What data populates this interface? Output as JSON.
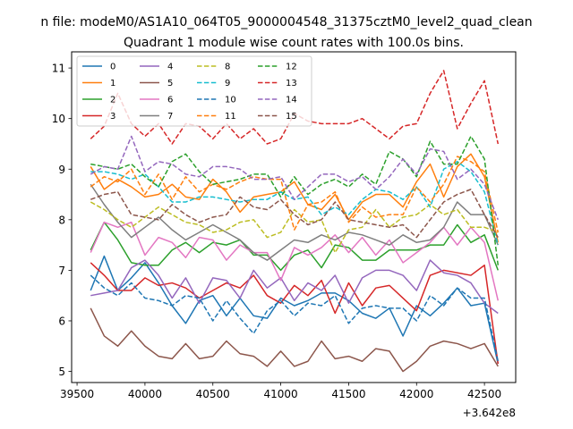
{
  "chart_data": {
    "type": "line",
    "suptitle": "n file: modeM0/AS1A10_064T05_9000004548_31375cztM0_level2_quad_clean",
    "title": "Quadrant 1 module wise count rates with 100.0s bins.",
    "xlabel": "",
    "ylabel": "",
    "x_offset_label": "+3.642e8",
    "xlim": [
      39460,
      42730
    ],
    "ylim": [
      4.78,
      11.32
    ],
    "xticks": [
      39500,
      40000,
      40500,
      41000,
      41500,
      42000,
      42500
    ],
    "yticks": [
      5,
      6,
      7,
      8,
      9,
      10,
      11
    ],
    "legend_position": "upper-left",
    "x": [
      39600,
      39700,
      39800,
      39900,
      40000,
      40100,
      40200,
      40300,
      40400,
      40500,
      40600,
      40700,
      40800,
      40900,
      41000,
      41100,
      41200,
      41300,
      41400,
      41500,
      41600,
      41700,
      41800,
      41900,
      42000,
      42100,
      42200,
      42300,
      42400,
      42500,
      42600
    ],
    "series": [
      {
        "name": "0",
        "color": "#1f77b4",
        "dash": "solid",
        "values": [
          6.6,
          7.28,
          6.6,
          6.85,
          7.15,
          6.75,
          6.3,
          5.95,
          6.4,
          6.5,
          6.1,
          6.45,
          6.1,
          6.05,
          6.45,
          6.3,
          6.4,
          6.55,
          6.55,
          6.4,
          6.15,
          6.05,
          6.25,
          5.7,
          6.3,
          6.1,
          6.35,
          6.65,
          6.3,
          6.35,
          5.15
        ]
      },
      {
        "name": "1",
        "color": "#ff7f0e",
        "dash": "solid",
        "values": [
          9.05,
          8.6,
          8.8,
          8.65,
          8.45,
          8.5,
          8.7,
          8.45,
          8.4,
          8.8,
          8.55,
          8.15,
          8.45,
          8.5,
          8.55,
          8.75,
          8.3,
          8.2,
          8.5,
          8.0,
          8.35,
          8.5,
          8.5,
          8.25,
          8.75,
          9.1,
          8.45,
          9.05,
          9.3,
          8.85,
          7.55
        ]
      },
      {
        "name": "2",
        "color": "#2ca02c",
        "dash": "solid",
        "values": [
          7.4,
          7.95,
          7.6,
          7.15,
          7.1,
          7.1,
          7.4,
          7.55,
          7.35,
          7.55,
          7.5,
          7.6,
          7.3,
          7.3,
          7.0,
          7.3,
          7.4,
          7.05,
          7.5,
          7.45,
          7.2,
          7.2,
          7.4,
          7.4,
          7.4,
          7.5,
          7.5,
          7.9,
          7.55,
          7.7,
          7.0
        ]
      },
      {
        "name": "3",
        "color": "#d62728",
        "dash": "solid",
        "values": [
          7.15,
          6.9,
          6.6,
          6.6,
          6.85,
          6.7,
          6.75,
          6.65,
          6.45,
          6.6,
          6.75,
          6.65,
          6.9,
          6.5,
          6.35,
          6.7,
          6.5,
          6.8,
          6.15,
          6.75,
          6.3,
          6.65,
          6.7,
          6.45,
          6.2,
          6.9,
          7.0,
          6.95,
          6.9,
          7.1,
          5.15
        ]
      },
      {
        "name": "4",
        "color": "#9467bd",
        "dash": "solid",
        "values": [
          6.5,
          6.55,
          6.6,
          7.05,
          7.2,
          6.9,
          6.45,
          6.85,
          6.35,
          6.85,
          6.8,
          6.45,
          7.0,
          6.65,
          6.85,
          6.4,
          6.75,
          6.6,
          6.9,
          6.35,
          6.85,
          7.0,
          7.0,
          6.9,
          6.6,
          7.2,
          6.95,
          6.9,
          6.75,
          6.35,
          6.15
        ]
      },
      {
        "name": "5",
        "color": "#8c564b",
        "dash": "solid",
        "values": [
          6.25,
          5.7,
          5.5,
          5.8,
          5.5,
          5.3,
          5.25,
          5.55,
          5.25,
          5.3,
          5.6,
          5.35,
          5.3,
          5.1,
          5.4,
          5.1,
          5.2,
          5.6,
          5.25,
          5.3,
          5.2,
          5.45,
          5.4,
          5.0,
          5.2,
          5.5,
          5.6,
          5.55,
          5.45,
          5.55,
          5.1
        ]
      },
      {
        "name": "6",
        "color": "#e377c2",
        "dash": "solid",
        "values": [
          7.35,
          7.95,
          7.85,
          7.95,
          7.3,
          7.65,
          7.55,
          7.25,
          7.65,
          7.6,
          7.2,
          7.5,
          7.35,
          7.35,
          6.8,
          7.45,
          7.3,
          7.45,
          7.7,
          7.35,
          7.65,
          7.3,
          7.6,
          7.15,
          7.35,
          7.55,
          7.85,
          7.5,
          7.85,
          7.55,
          6.4
        ]
      },
      {
        "name": "7",
        "color": "#7f7f7f",
        "dash": "solid",
        "values": [
          8.7,
          8.3,
          7.95,
          7.65,
          7.85,
          8.05,
          7.8,
          7.6,
          7.75,
          7.9,
          7.75,
          7.6,
          7.35,
          7.2,
          7.4,
          7.6,
          7.55,
          7.7,
          7.6,
          7.75,
          7.7,
          7.6,
          7.5,
          7.7,
          7.55,
          7.6,
          7.85,
          8.35,
          8.1,
          8.1,
          7.5
        ]
      },
      {
        "name": "8",
        "color": "#bcbd22",
        "dash": "dashed",
        "values": [
          8.35,
          8.2,
          8.0,
          7.85,
          8.05,
          8.25,
          8.1,
          7.95,
          7.9,
          7.75,
          7.8,
          7.95,
          8.0,
          7.65,
          7.75,
          8.2,
          7.95,
          8.0,
          7.35,
          7.8,
          7.85,
          8.2,
          7.85,
          8.05,
          8.1,
          8.3,
          8.1,
          8.2,
          7.85,
          7.85,
          7.75
        ]
      },
      {
        "name": "9",
        "color": "#17becf",
        "dash": "dashed",
        "values": [
          8.95,
          8.95,
          8.9,
          8.8,
          8.9,
          8.65,
          8.35,
          8.35,
          8.45,
          8.45,
          8.4,
          8.35,
          8.4,
          8.4,
          8.55,
          8.4,
          8.45,
          8.1,
          8.25,
          8.1,
          8.4,
          8.6,
          8.55,
          8.4,
          8.65,
          8.25,
          9.0,
          9.15,
          8.95,
          8.55,
          7.5
        ]
      },
      {
        "name": "10",
        "color": "#1f77b4",
        "dash": "dashed",
        "values": [
          6.9,
          6.65,
          6.5,
          6.75,
          6.45,
          6.4,
          6.3,
          6.5,
          6.45,
          6.0,
          6.4,
          6.05,
          5.75,
          6.2,
          6.4,
          6.1,
          6.35,
          6.3,
          6.5,
          5.95,
          6.25,
          6.3,
          6.25,
          6.25,
          6.0,
          6.5,
          6.3,
          6.65,
          6.45,
          6.45,
          5.2
        ]
      },
      {
        "name": "11",
        "color": "#ff7f0e",
        "dash": "dashed",
        "values": [
          8.65,
          8.85,
          8.75,
          9.0,
          8.5,
          8.9,
          8.4,
          8.85,
          8.55,
          8.7,
          8.6,
          8.75,
          8.85,
          8.8,
          8.8,
          7.8,
          8.3,
          8.35,
          8.55,
          7.95,
          8.25,
          8.05,
          8.1,
          8.1,
          8.65,
          8.35,
          8.7,
          9.25,
          9.15,
          8.95,
          7.75
        ]
      },
      {
        "name": "12",
        "color": "#2ca02c",
        "dash": "dashed",
        "values": [
          9.1,
          9.05,
          9.0,
          9.1,
          8.85,
          8.65,
          9.15,
          9.3,
          8.95,
          8.7,
          8.75,
          8.8,
          8.9,
          8.9,
          8.45,
          8.85,
          8.5,
          8.7,
          8.8,
          8.65,
          8.9,
          8.7,
          9.35,
          9.2,
          8.85,
          9.55,
          9.1,
          9.1,
          9.65,
          9.2,
          7.1
        ]
      },
      {
        "name": "13",
        "color": "#d62728",
        "dash": "dashed",
        "values": [
          9.6,
          9.85,
          10.5,
          9.9,
          9.65,
          9.9,
          9.5,
          9.9,
          9.85,
          9.6,
          9.9,
          9.6,
          9.8,
          9.5,
          9.6,
          10.1,
          9.95,
          9.9,
          9.9,
          9.9,
          10.0,
          9.8,
          9.6,
          9.85,
          9.9,
          10.5,
          10.95,
          9.8,
          10.3,
          10.75,
          9.5
        ]
      },
      {
        "name": "14",
        "color": "#9467bd",
        "dash": "dashed",
        "values": [
          8.9,
          9.05,
          9.0,
          9.65,
          8.95,
          9.15,
          9.1,
          8.9,
          8.85,
          9.05,
          9.05,
          9.0,
          8.8,
          8.8,
          8.85,
          8.4,
          8.65,
          8.9,
          8.9,
          8.75,
          8.85,
          8.6,
          8.85,
          9.2,
          8.9,
          9.4,
          9.35,
          8.8,
          9.0,
          8.7,
          8.0
        ]
      },
      {
        "name": "15",
        "color": "#8c564b",
        "dash": "dashed",
        "values": [
          8.4,
          8.5,
          8.55,
          8.1,
          8.05,
          8.0,
          8.3,
          8.1,
          7.95,
          8.05,
          8.1,
          8.45,
          8.25,
          8.2,
          8.4,
          8.1,
          7.9,
          8.0,
          8.35,
          8.0,
          7.95,
          7.9,
          7.85,
          7.9,
          7.65,
          8.0,
          8.35,
          8.5,
          8.6,
          8.1,
          7.65
        ]
      }
    ]
  }
}
